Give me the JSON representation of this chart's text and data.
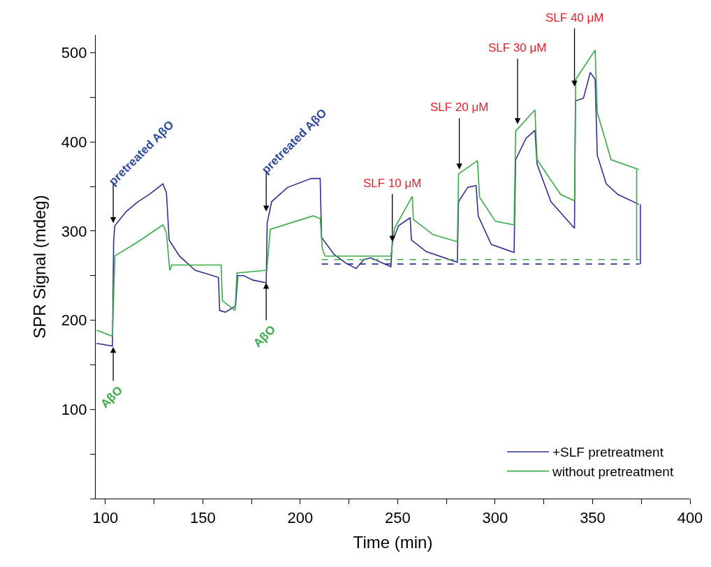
{
  "chart_data": {
    "type": "line",
    "xlabel": "Time (min)",
    "ylabel": "SPR Signal (mdeg)",
    "xlim": [
      95,
      400
    ],
    "ylim": [
      0,
      520
    ],
    "xticks": [
      100,
      {
        "value": 125,
        "label": null
      },
      150,
      {
        "value": 175,
        "label": null
      },
      200,
      {
        "value": 225,
        "label": null
      },
      250,
      {
        "value": 275,
        "label": null
      },
      300,
      {
        "value": 325,
        "label": null
      },
      350,
      {
        "value": 375,
        "label": null
      },
      400
    ],
    "yticks": [
      {
        "value": 0,
        "label": null
      },
      {
        "value": 50,
        "label": null
      },
      100,
      {
        "value": 150,
        "label": null
      },
      200,
      {
        "value": 250,
        "label": null
      },
      300,
      {
        "value": 350,
        "label": null
      },
      400,
      {
        "value": 450,
        "label": null
      },
      500
    ],
    "legend": "bottom right",
    "marker": "none",
    "line_style": "solid",
    "series": [
      {
        "name": "+SLF pretreatment",
        "color": "#2e3192",
        "x": [
          95.4,
          103.6,
          104.2,
          104.8,
          110.7,
          116.7,
          122.4,
          129.5,
          131.3,
          132.7,
          138,
          146,
          158,
          158.6,
          161.5,
          166.8,
          167.9,
          171,
          175.7,
          182.5,
          183.0,
          185.3,
          193.5,
          205.6,
          210.2,
          210.9,
          217.3,
          223.4,
          228.7,
          232.6,
          236.2,
          246.5,
          247.2,
          250.4,
          256.4,
          257,
          264.6,
          280.6,
          281.2,
          285.9,
          290.2,
          291.3,
          298,
          309.7,
          310.5,
          315.8,
          320.4,
          321.5,
          328.6,
          340.7,
          341.2,
          345.3,
          348.8,
          351.3,
          352.4,
          357,
          363,
          373.7
        ],
        "values": [
          174,
          171,
          288,
          306,
          322,
          333,
          341,
          353,
          343,
          290,
          272,
          256,
          248,
          211,
          209,
          216,
          250,
          250,
          245,
          242,
          309,
          333,
          349,
          359,
          359,
          293,
          274,
          264,
          258,
          268,
          270,
          260,
          288,
          306,
          315,
          290,
          277,
          265,
          333,
          349,
          351,
          317,
          285,
          276,
          380,
          404,
          413,
          375,
          333,
          303,
          446,
          449,
          478,
          470,
          385,
          353,
          341,
          330
        ]
      },
      {
        "name": "without pretreatment",
        "color": "#3aaa4a",
        "x": [
          95.4,
          103.6,
          104.8,
          116.7,
          129.5,
          131.3,
          133,
          134,
          159.4,
          160,
          166.5,
          167.5,
          182.8,
          184.6,
          206.6,
          210.2,
          211.3,
          212.7,
          246.5,
          248.3,
          257.5,
          258,
          268.2,
          280.6,
          281.2,
          290.9,
          292,
          300.1,
          309.7,
          310.5,
          320.4,
          321.5,
          333.6,
          340.7,
          341.3,
          351.3,
          352.4,
          359.5,
          373.7
        ],
        "values": [
          189,
          182,
          272,
          288,
          307,
          298,
          256,
          262,
          262,
          222,
          211,
          253,
          256,
          302,
          317,
          314,
          280,
          272,
          272,
          303,
          339,
          313,
          296,
          288,
          364,
          379,
          338,
          311,
          307,
          412,
          436,
          380,
          341,
          334,
          470,
          503,
          433,
          380,
          369
        ]
      },
      {
        "color": "#3aaa4a",
        "line_style": "dashed",
        "x": [
          211,
          374
        ],
        "values": [
          268,
          268
        ]
      },
      {
        "color": "#2e3192",
        "line_style": "dashed",
        "x": [
          211,
          374
        ],
        "values": [
          263,
          263
        ]
      },
      {
        "color": "#3aaa4a",
        "x": [
          372.6,
          372.6
        ],
        "values": [
          268,
          369
        ]
      },
      {
        "color": "#2e3192",
        "x": [
          374.5,
          374.5
        ],
        "values": [
          263,
          330
        ]
      }
    ],
    "annotations": [
      {
        "text": "pretreated AβO",
        "x": 104,
        "y": 309
      },
      {
        "text": "AβO",
        "x": 104,
        "y": 170
      },
      {
        "text": "pretreated AβO",
        "x": 182.5,
        "y": 322
      },
      {
        "text": "AβO",
        "x": 182.5,
        "y": 242
      },
      {
        "text": "SLF 10 μM",
        "x": 247.2,
        "y": 288
      },
      {
        "text": "SLF 20 μM",
        "x": 281.6,
        "y": 369
      },
      {
        "text": "SLF 30 μM",
        "x": 311.5,
        "y": 420
      },
      {
        "text": "SLF 40 μM",
        "x": 340.7,
        "y": 462
      }
    ]
  }
}
